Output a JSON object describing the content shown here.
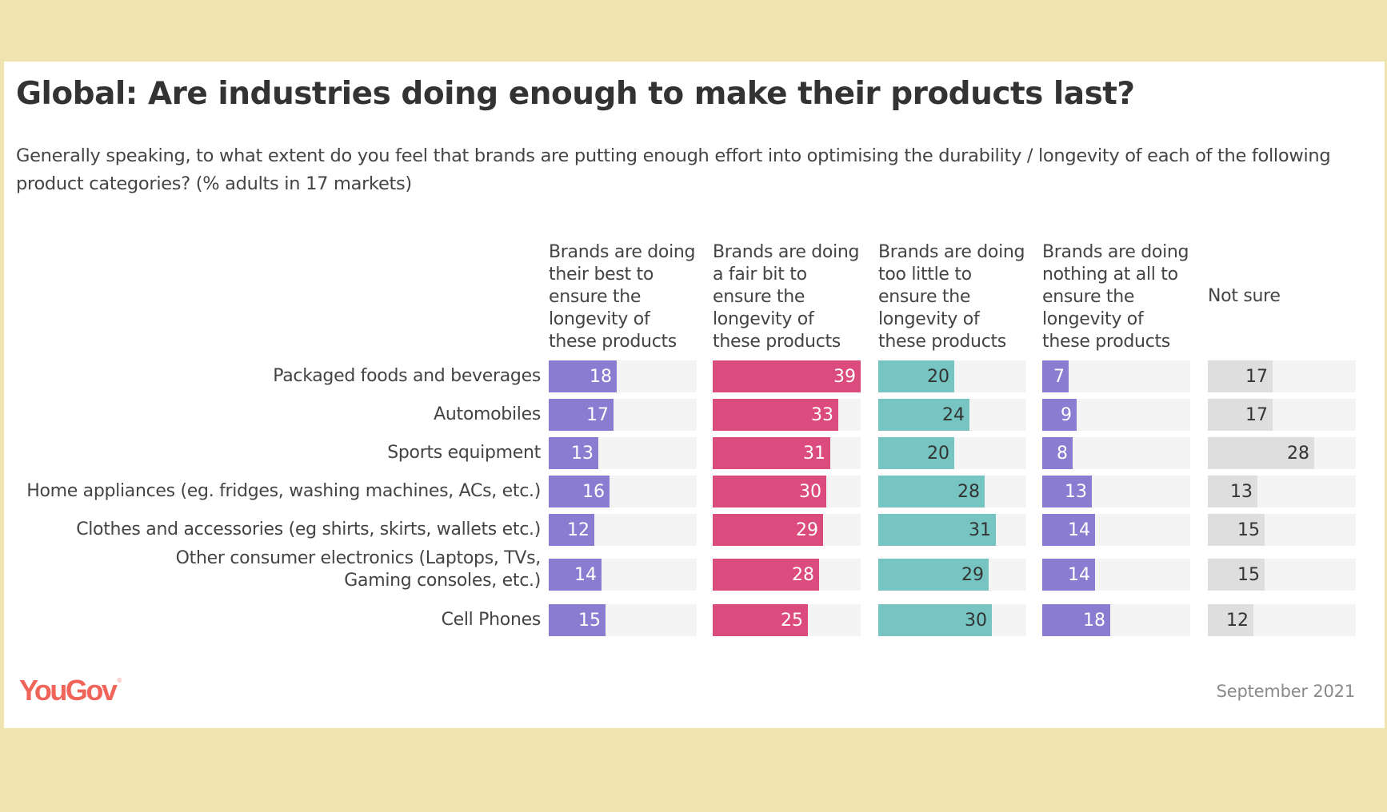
{
  "header": {
    "title": "Global: Are industries doing enough to make their products last?",
    "subtitle": "Generally speaking, to what extent do you feel that brands are putting enough effort into optimising the durability / longevity of each of the following product categories? (% adults in 17 markets)"
  },
  "footer": {
    "logo": "YouGov",
    "logo_mark": "®",
    "date": "September 2021"
  },
  "colors": {
    "page_background": "#efe3b0",
    "track": "#f4f4f4",
    "text": "#444444"
  },
  "chart_data": {
    "type": "bar",
    "orientation": "horizontal",
    "layout": "small-multiples",
    "title": "Global: Are industries doing enough to make their products last?",
    "subtitle": "Generally speaking, to what extent do you feel that brands are putting enough effort into optimising the durability / longevity of each of the following product categories? (% adults in 17 markets)",
    "categories": [
      "Packaged foods and beverages",
      "Automobiles",
      "Sports equipment",
      "Home appliances (eg. fridges, washing machines, ACs, etc.)",
      "Clothes and accessories (eg shirts, skirts, wallets etc.)",
      "Other consumer electronics (Laptops, TVs, Gaming consoles, etc.)",
      "Cell Phones"
    ],
    "series": [
      {
        "name": "Brands are doing their best to ensure the longevity of these products",
        "color": "#8a7cd1",
        "label_color": "#ffffff",
        "values": [
          18,
          17,
          13,
          16,
          12,
          14,
          15
        ]
      },
      {
        "name": "Brands are doing a fair bit to ensure the longevity of these products",
        "color": "#dc4b7e",
        "label_color": "#ffffff",
        "values": [
          39,
          33,
          31,
          30,
          29,
          28,
          25
        ]
      },
      {
        "name": "Brands are doing too little to ensure the longevity of these products",
        "color": "#76c5c2",
        "label_color": "#333333",
        "values": [
          20,
          24,
          20,
          28,
          31,
          29,
          30
        ]
      },
      {
        "name": "Brands are doing nothing at all to ensure the longevity of these products",
        "color": "#8a7cd1",
        "label_color": "#ffffff",
        "values": [
          7,
          9,
          8,
          13,
          14,
          14,
          18
        ]
      },
      {
        "name": "Not sure",
        "color": "#dedede",
        "label_color": "#333333",
        "values": [
          17,
          17,
          28,
          13,
          15,
          15,
          12
        ]
      }
    ],
    "xlim": [
      0,
      39
    ],
    "unit": "%",
    "grid": false,
    "legend": "column-headers-top"
  }
}
